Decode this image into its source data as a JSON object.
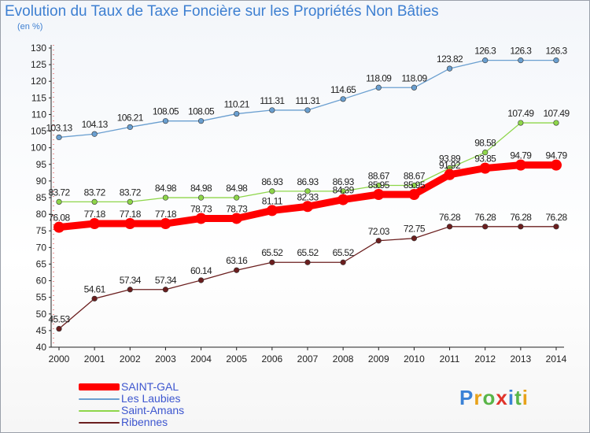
{
  "chart_data": {
    "type": "line",
    "title": "Evolution du Taux de Taxe Foncière sur les Propriétés Non Bâties",
    "unit_label": "(en %)",
    "x": [
      2000,
      2001,
      2002,
      2003,
      2004,
      2005,
      2006,
      2007,
      2008,
      2009,
      2010,
      2011,
      2012,
      2013,
      2014
    ],
    "ylim": [
      40,
      130
    ],
    "yticks": [
      40,
      45,
      50,
      55,
      60,
      65,
      70,
      75,
      80,
      85,
      90,
      95,
      100,
      105,
      110,
      115,
      120,
      125,
      130
    ],
    "grid": false,
    "legend_position": "bottom-left",
    "series": [
      {
        "name": "SAINT-GAL",
        "color": "#ff0000",
        "values": [
          76.08,
          77.18,
          77.18,
          77.18,
          78.73,
          78.73,
          81.11,
          82.33,
          84.39,
          85.95,
          85.95,
          91.92,
          93.85,
          94.79,
          94.79
        ]
      },
      {
        "name": "Les Laubies",
        "color": "#6a9fd0",
        "values": [
          103.13,
          104.13,
          106.21,
          108.05,
          108.05,
          110.21,
          111.31,
          111.31,
          114.65,
          118.09,
          118.09,
          123.82,
          126.3,
          126.3,
          126.3
        ]
      },
      {
        "name": "Saint-Amans",
        "color": "#8ed64a",
        "values": [
          83.72,
          83.72,
          83.72,
          84.98,
          84.98,
          84.98,
          86.93,
          86.93,
          86.93,
          88.67,
          88.67,
          93.89,
          98.58,
          107.49,
          107.49
        ]
      },
      {
        "name": "Ribennes",
        "color": "#6b1e1e",
        "values": [
          45.53,
          54.61,
          57.34,
          57.34,
          60.14,
          63.16,
          65.52,
          65.52,
          65.52,
          72.03,
          72.75,
          76.28,
          76.28,
          76.28,
          76.28
        ]
      }
    ],
    "point_labels": {
      "SAINT-GAL": [
        "76.08",
        "77.18",
        "77.18",
        "77.18",
        "78.73",
        "78.73",
        "81.11",
        "82.33",
        "84.39",
        "85.95",
        "85.95",
        "91.92",
        "93.85",
        "94.79",
        "94.79"
      ],
      "Les Laubies": [
        "103.13",
        "104.13",
        "106.21",
        "108.05",
        "108.05",
        "110.21",
        "111.31",
        "111.31",
        "114.65",
        "118.09",
        "118.09",
        "123.82",
        "126.3",
        "126.3",
        "126.3"
      ],
      "Saint-Amans": [
        "83.72",
        "83.72",
        "83.72",
        "84.98",
        "84.98",
        "84.98",
        "86.93",
        "86.93",
        "86.93",
        "88.67",
        "88.67",
        "93.89",
        "98.58",
        "107.49",
        "107.49"
      ],
      "Ribennes": [
        "45.53",
        "54.61",
        "57.34",
        "57.34",
        "60.14",
        "63.16",
        "65.52",
        "65.52",
        "65.52",
        "72.03",
        "72.75",
        "76.28",
        "76.28",
        "76.28",
        "76.28"
      ]
    }
  },
  "brand": {
    "letters": [
      "P",
      "r",
      "o",
      "x",
      "i",
      "t",
      "i"
    ],
    "colors": [
      "#3b82d6",
      "#e8a21a",
      "#59b548",
      "#e0332a",
      "#3b82d6",
      "#59b548",
      "#e8a21a"
    ]
  }
}
